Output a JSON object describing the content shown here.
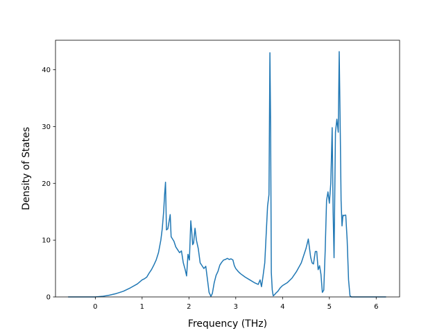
{
  "chart_data": {
    "type": "line",
    "title": "",
    "xlabel": "Frequency (THz)",
    "ylabel": "Density of States",
    "xlim": [
      -0.85,
      6.5
    ],
    "ylim": [
      0,
      45.2
    ],
    "xticks": [
      0,
      1,
      2,
      3,
      4,
      5,
      6
    ],
    "yticks": [
      0,
      10,
      20,
      30,
      40
    ],
    "grid": false,
    "legend": "none",
    "series_color": "#1f77b4",
    "series": [
      {
        "x": [
          -0.57,
          -0.3,
          0.0,
          0.15,
          0.3,
          0.45,
          0.6,
          0.75,
          0.9,
          1.0,
          1.05,
          1.1,
          1.15,
          1.2,
          1.25,
          1.3,
          1.35,
          1.4,
          1.43,
          1.46,
          1.48,
          1.5,
          1.52,
          1.55,
          1.57,
          1.6,
          1.62,
          1.65,
          1.68,
          1.72,
          1.76,
          1.8,
          1.84,
          1.88,
          1.92,
          1.95,
          1.98,
          2.01,
          2.04,
          2.06,
          2.08,
          2.1,
          2.13,
          2.16,
          2.2,
          2.24,
          2.28,
          2.32,
          2.36,
          2.4,
          2.43,
          2.47,
          2.5,
          2.54,
          2.58,
          2.62,
          2.66,
          2.7,
          2.74,
          2.78,
          2.82,
          2.86,
          2.9,
          2.94,
          2.97,
          3.0,
          3.05,
          3.1,
          3.2,
          3.3,
          3.4,
          3.48,
          3.52,
          3.55,
          3.58,
          3.62,
          3.65,
          3.68,
          3.71,
          3.73,
          3.745,
          3.76,
          3.78,
          3.8,
          3.83,
          3.86,
          3.9,
          3.95,
          4.0,
          4.1,
          4.2,
          4.3,
          4.4,
          4.5,
          4.55,
          4.6,
          4.63,
          4.66,
          4.7,
          4.73,
          4.76,
          4.79,
          4.82,
          4.85,
          4.88,
          4.91,
          4.94,
          4.97,
          5.0,
          5.03,
          5.06,
          5.08,
          5.1,
          5.13,
          5.16,
          5.19,
          5.21,
          5.23,
          5.25,
          5.27,
          5.29,
          5.31,
          5.33,
          5.35,
          5.38,
          5.41,
          5.44,
          5.47,
          5.5,
          5.53,
          5.56,
          5.59,
          5.62,
          5.66,
          5.7,
          5.8,
          6.0,
          6.2
        ],
        "y": [
          0.0,
          0.0,
          0.0,
          0.1,
          0.3,
          0.6,
          1.0,
          1.6,
          2.3,
          3.0,
          3.2,
          3.5,
          4.2,
          4.8,
          5.6,
          6.5,
          7.8,
          10.0,
          12.0,
          15.0,
          18.0,
          20.2,
          11.8,
          12.0,
          13.0,
          14.5,
          10.6,
          10.2,
          9.8,
          8.8,
          8.3,
          7.8,
          8.1,
          6.0,
          4.8,
          3.7,
          7.5,
          6.5,
          13.4,
          11.5,
          9.2,
          9.5,
          12.1,
          10.0,
          8.5,
          6.0,
          5.5,
          5.0,
          5.4,
          2.8,
          0.8,
          0.1,
          0.6,
          2.5,
          3.8,
          4.5,
          5.6,
          6.1,
          6.5,
          6.6,
          6.8,
          6.6,
          6.7,
          6.5,
          5.5,
          5.0,
          4.5,
          4.1,
          3.5,
          3.0,
          2.5,
          2.2,
          3.0,
          1.8,
          3.5,
          6.0,
          11.0,
          16.0,
          18.0,
          43.0,
          30.0,
          4.3,
          1.2,
          0.2,
          0.4,
          0.7,
          1.0,
          1.6,
          2.0,
          2.5,
          3.3,
          4.5,
          6.0,
          8.5,
          10.2,
          7.0,
          6.0,
          5.8,
          8.0,
          8.0,
          4.8,
          5.5,
          4.0,
          0.8,
          1.2,
          8.0,
          17.0,
          18.5,
          16.5,
          20.0,
          29.8,
          15.0,
          6.9,
          29.0,
          31.3,
          29.0,
          43.2,
          31.0,
          17.0,
          12.5,
          14.4,
          14.3,
          14.4,
          14.4,
          10.0,
          3.0,
          0.2,
          0.0,
          0.0,
          0.0,
          0.0,
          0.0,
          0.0,
          0.0,
          0.0,
          0.0,
          0.0,
          0.0
        ]
      }
    ]
  }
}
